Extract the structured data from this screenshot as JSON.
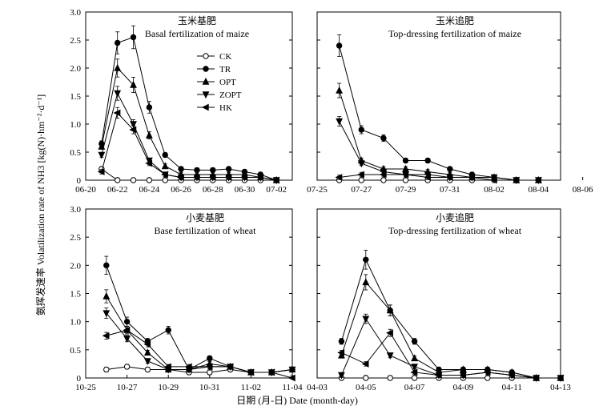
{
  "figure": {
    "ylabel": "氨挥发速率 Volatilization rate of NH3 [kg(N)·hm⁻²·d⁻¹]",
    "xlabel": "日期 (月-日) Date (month-day)",
    "legend": [
      "CK",
      "TR",
      "OPT",
      "ZOPT",
      "HK"
    ]
  },
  "chart_data": [
    {
      "type": "line",
      "title": "玉米基肥",
      "subtitle": "Basal fertilization of maize",
      "ylim": [
        0,
        3.0
      ],
      "yticks": [
        "0",
        "0.5",
        "1.0",
        "1.5",
        "2.0",
        "2.5",
        "3.0"
      ],
      "xlim": [
        0,
        13
      ],
      "xticks": [
        {
          "x": 0,
          "label": "06-20"
        },
        {
          "x": 2,
          "label": "06-22"
        },
        {
          "x": 4,
          "label": "06-24"
        },
        {
          "x": 6,
          "label": "06-26"
        },
        {
          "x": 8,
          "label": "06-28"
        },
        {
          "x": 10,
          "label": "06-30"
        },
        {
          "x": 12,
          "label": "07-02"
        }
      ],
      "legend_position": "upper-center",
      "series": [
        {
          "name": "CK",
          "x": [
            1,
            2,
            3,
            4,
            5,
            6,
            7,
            8,
            9,
            10,
            11,
            12
          ],
          "values": [
            0.2,
            0,
            0,
            0,
            0,
            0,
            0,
            0,
            0,
            0,
            0,
            0
          ]
        },
        {
          "name": "TR",
          "x": [
            1,
            2,
            3,
            4,
            5,
            6,
            7,
            8,
            9,
            10,
            11,
            12
          ],
          "values": [
            0.65,
            2.45,
            2.55,
            1.3,
            0.45,
            0.2,
            0.18,
            0.18,
            0.2,
            0.15,
            0.1,
            0
          ]
        },
        {
          "name": "OPT",
          "x": [
            1,
            2,
            3,
            4,
            5,
            6,
            7,
            8,
            9,
            10,
            11,
            12
          ],
          "values": [
            0.6,
            2.0,
            1.7,
            0.8,
            0.25,
            0.1,
            0.1,
            0.1,
            0.1,
            0.1,
            0.05,
            0
          ]
        },
        {
          "name": "ZOPT",
          "x": [
            1,
            2,
            3,
            4,
            5,
            6,
            7,
            8,
            9,
            10,
            11,
            12
          ],
          "values": [
            0.45,
            1.55,
            1.0,
            0.35,
            0.1,
            0.05,
            0.05,
            0.05,
            0.05,
            0.05,
            0.05,
            0
          ]
        },
        {
          "name": "HK",
          "x": [
            1,
            2,
            3,
            4,
            5,
            6,
            7,
            8,
            9,
            10,
            11,
            12
          ],
          "values": [
            0.15,
            1.2,
            0.9,
            0.3,
            0.1,
            0.05,
            0.05,
            0.05,
            0.05,
            0.05,
            0.05,
            0
          ]
        }
      ]
    },
    {
      "type": "line",
      "title": "玉米追肥",
      "subtitle": "Top-dressing fertilization of  maize",
      "ylim": [
        0,
        3.0
      ],
      "xlim": [
        0,
        11
      ],
      "xticks": [
        {
          "x": 0,
          "label": "07-25"
        },
        {
          "x": 2,
          "label": "07-27"
        },
        {
          "x": 4,
          "label": "07-29"
        },
        {
          "x": 6,
          "label": "07-31"
        },
        {
          "x": 8,
          "label": "08-02"
        },
        {
          "x": 10,
          "label": "08-04"
        },
        {
          "x": 12,
          "label": "08-06"
        }
      ],
      "series": [
        {
          "name": "CK",
          "x": [
            1,
            2,
            3,
            4,
            5,
            6,
            7,
            8,
            9,
            10
          ],
          "values": [
            0,
            0,
            0,
            0,
            0,
            0,
            0,
            0,
            0,
            0
          ]
        },
        {
          "name": "TR",
          "x": [
            1,
            2,
            3,
            4,
            5,
            6,
            7,
            8,
            9,
            10
          ],
          "values": [
            2.4,
            0.9,
            0.75,
            0.35,
            0.35,
            0.2,
            0.1,
            0.05,
            0,
            0
          ]
        },
        {
          "name": "OPT",
          "x": [
            1,
            2,
            3,
            4,
            5,
            6,
            7,
            8,
            9,
            10
          ],
          "values": [
            1.6,
            0.35,
            0.2,
            0.2,
            0.15,
            0.1,
            0.05,
            0.05,
            0,
            0
          ]
        },
        {
          "name": "ZOPT",
          "x": [
            1,
            2,
            3,
            4,
            5,
            6,
            7,
            8,
            9,
            10
          ],
          "values": [
            1.05,
            0.3,
            0.15,
            0.1,
            0.1,
            0.05,
            0.05,
            0.05,
            0,
            0
          ]
        },
        {
          "name": "HK",
          "x": [
            1,
            2,
            3,
            4,
            5,
            6,
            7,
            8,
            9,
            10
          ],
          "values": [
            0.05,
            0.1,
            0.1,
            0.1,
            0.05,
            0.05,
            0.05,
            0,
            0,
            0
          ]
        }
      ]
    },
    {
      "type": "line",
      "title": "小麦基肥",
      "subtitle": "Base fertilization of wheat",
      "ylim": [
        0,
        3.0
      ],
      "yticks": [
        "0",
        "0.5",
        "1.0",
        "1.5",
        "2.0",
        "2.5",
        "3.0"
      ],
      "xlim": [
        0,
        10
      ],
      "xticks": [
        {
          "x": 0,
          "label": "10-25"
        },
        {
          "x": 2,
          "label": "10-27"
        },
        {
          "x": 4,
          "label": "10-29"
        },
        {
          "x": 6,
          "label": "10-31"
        },
        {
          "x": 8,
          "label": "11-02"
        },
        {
          "x": 10,
          "label": "11-04"
        }
      ],
      "series": [
        {
          "name": "CK",
          "x": [
            1,
            2,
            3,
            4,
            5,
            6,
            7,
            8,
            9,
            10
          ],
          "values": [
            0.15,
            0.2,
            0.15,
            0.15,
            0.1,
            0.1,
            0.15,
            0.1,
            0.1,
            0.15
          ]
        },
        {
          "name": "TR",
          "x": [
            1,
            2,
            3,
            4,
            5,
            6,
            7,
            8,
            9,
            10
          ],
          "values": [
            2.0,
            1.0,
            0.65,
            0.85,
            0.15,
            0.35,
            0.2,
            0.1,
            0.1,
            0.15
          ]
        },
        {
          "name": "OPT",
          "x": [
            1,
            2,
            3,
            4,
            5,
            6,
            7,
            8,
            9,
            10
          ],
          "values": [
            1.45,
            0.85,
            0.45,
            0.15,
            0.15,
            0.25,
            0.2,
            0.1,
            0.1,
            0.15
          ]
        },
        {
          "name": "ZOPT",
          "x": [
            1,
            2,
            3,
            4,
            5,
            6,
            7,
            8,
            9,
            10
          ],
          "values": [
            1.15,
            0.7,
            0.3,
            0.15,
            0.15,
            0.2,
            0.2,
            0.1,
            0.1,
            0.15
          ]
        },
        {
          "name": "HK",
          "x": [
            1,
            2,
            3,
            4,
            5,
            6,
            7,
            8,
            9,
            10
          ],
          "values": [
            0.75,
            0.85,
            0.6,
            0.2,
            0.2,
            0.2,
            0.2,
            0.1,
            0.1,
            0
          ]
        }
      ]
    },
    {
      "type": "line",
      "title": "小麦追肥",
      "subtitle": "Top-dressing fertilization of wheat",
      "ylim": [
        0,
        3.0
      ],
      "xlim": [
        0,
        10
      ],
      "xticks": [
        {
          "x": 0,
          "label": "04-03"
        },
        {
          "x": 2,
          "label": "04-05"
        },
        {
          "x": 4,
          "label": "04-07"
        },
        {
          "x": 6,
          "label": "04-09"
        },
        {
          "x": 8,
          "label": "04-11"
        },
        {
          "x": 10,
          "label": "04-13"
        }
      ],
      "series": [
        {
          "name": "CK",
          "x": [
            1,
            2,
            3,
            4,
            5,
            6,
            7,
            8,
            9,
            10
          ],
          "values": [
            0,
            0,
            0,
            0,
            0,
            0,
            0,
            0,
            0,
            0
          ]
        },
        {
          "name": "TR",
          "x": [
            1,
            2,
            3,
            4,
            5,
            6,
            7,
            8,
            9,
            10
          ],
          "values": [
            0.65,
            2.1,
            1.2,
            0.65,
            0.15,
            0.15,
            0.15,
            0.1,
            0,
            0
          ]
        },
        {
          "name": "OPT",
          "x": [
            1,
            2,
            3,
            4,
            5,
            6,
            7,
            8,
            9,
            10
          ],
          "values": [
            0.4,
            1.7,
            1.2,
            0.35,
            0.1,
            0.15,
            0.15,
            0.1,
            0,
            0
          ]
        },
        {
          "name": "ZOPT",
          "x": [
            1,
            2,
            3,
            4,
            5,
            6,
            7,
            8,
            9,
            10
          ],
          "values": [
            0.05,
            1.05,
            0.4,
            0.2,
            0.05,
            0.05,
            0.1,
            0.05,
            0,
            0
          ]
        },
        {
          "name": "HK",
          "x": [
            1,
            2,
            3,
            4,
            5,
            6,
            7,
            8,
            9,
            10
          ],
          "values": [
            0.45,
            0.25,
            0.8,
            0.1,
            0.05,
            0.05,
            0.1,
            0.05,
            0,
            0
          ]
        }
      ]
    }
  ]
}
